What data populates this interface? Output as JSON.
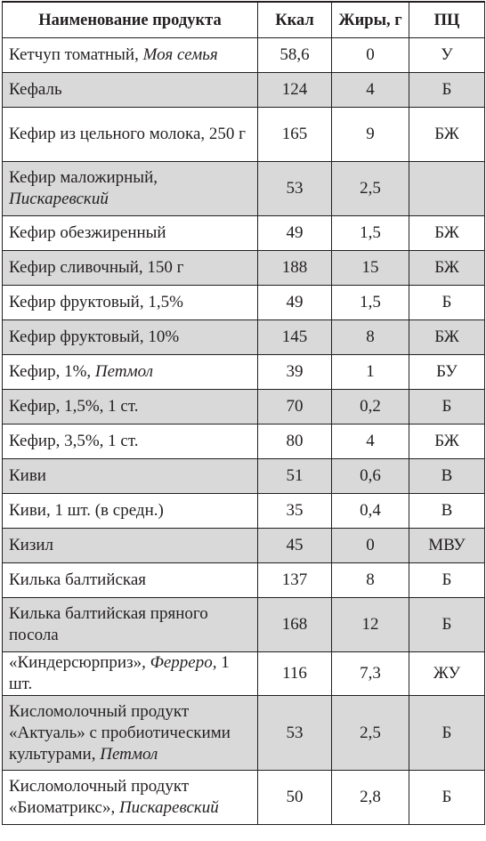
{
  "columns": [
    "Наименование продукта",
    "Ккал",
    "Жиры, г",
    "ПЦ"
  ],
  "rows": [
    {
      "name": "Кетчуп томатный, ",
      "brand": "Моя семья",
      "suffix": "",
      "kcal": "58,6",
      "fat": "0",
      "pc": "У"
    },
    {
      "name": "Кефаль",
      "brand": "",
      "suffix": "",
      "kcal": "124",
      "fat": "4",
      "pc": "Б"
    },
    {
      "name": "Кефир из цельного молока, 250 г",
      "brand": "",
      "suffix": "",
      "kcal": "165",
      "fat": "9",
      "pc": "БЖ"
    },
    {
      "name": "Кефир маложирный, ",
      "brand": "Пискаревский",
      "suffix": "",
      "kcal": "53",
      "fat": "2,5",
      "pc": ""
    },
    {
      "name": "Кефир обезжиренный",
      "brand": "",
      "suffix": "",
      "kcal": "49",
      "fat": "1,5",
      "pc": "БЖ"
    },
    {
      "name": "Кефир сливочный, 150 г",
      "brand": "",
      "suffix": "",
      "kcal": "188",
      "fat": "15",
      "pc": "БЖ"
    },
    {
      "name": "Кефир фруктовый, 1,5%",
      "brand": "",
      "suffix": "",
      "kcal": "49",
      "fat": "1,5",
      "pc": "Б"
    },
    {
      "name": "Кефир фруктовый, 10%",
      "brand": "",
      "suffix": "",
      "kcal": "145",
      "fat": "8",
      "pc": "БЖ"
    },
    {
      "name": "Кефир, 1%, ",
      "brand": "Петмол",
      "suffix": "",
      "kcal": "39",
      "fat": "1",
      "pc": "БУ"
    },
    {
      "name": "Кефир, 1,5%, 1 ст.",
      "brand": "",
      "suffix": "",
      "kcal": "70",
      "fat": "0,2",
      "pc": "Б"
    },
    {
      "name": "Кефир, 3,5%, 1 ст.",
      "brand": "",
      "suffix": "",
      "kcal": "80",
      "fat": "4",
      "pc": "БЖ"
    },
    {
      "name": "Киви",
      "brand": "",
      "suffix": "",
      "kcal": "51",
      "fat": "0,6",
      "pc": "В"
    },
    {
      "name": "Киви, 1 шт. (в средн.)",
      "brand": "",
      "suffix": "",
      "kcal": "35",
      "fat": "0,4",
      "pc": "В"
    },
    {
      "name": "Кизил",
      "brand": "",
      "suffix": "",
      "kcal": "45",
      "fat": "0",
      "pc": "МВУ"
    },
    {
      "name": "Килька балтийская",
      "brand": "",
      "suffix": "",
      "kcal": "137",
      "fat": "8",
      "pc": "Б"
    },
    {
      "name": "Килька балтийская пряного посола",
      "brand": "",
      "suffix": "",
      "kcal": "168",
      "fat": "12",
      "pc": "Б"
    },
    {
      "name": "«Киндерсюрприз», ",
      "brand": "Ферреро,",
      "suffix": " 1 шт.",
      "kcal": "116",
      "fat": "7,3",
      "pc": "ЖУ"
    },
    {
      "name": "Кисломолочный продукт «Актуаль» с пробиотическими культурами, ",
      "brand": "Петмол",
      "suffix": "",
      "kcal": "53",
      "fat": "2,5",
      "pc": "Б"
    },
    {
      "name": "Кисломолочный продукт «Биоматрикс», ",
      "brand": "Пискаревский",
      "suffix": "",
      "kcal": "50",
      "fat": "2,8",
      "pc": "Б"
    }
  ],
  "colors": {
    "shade": "#d9d9da",
    "border": "#231f20"
  }
}
